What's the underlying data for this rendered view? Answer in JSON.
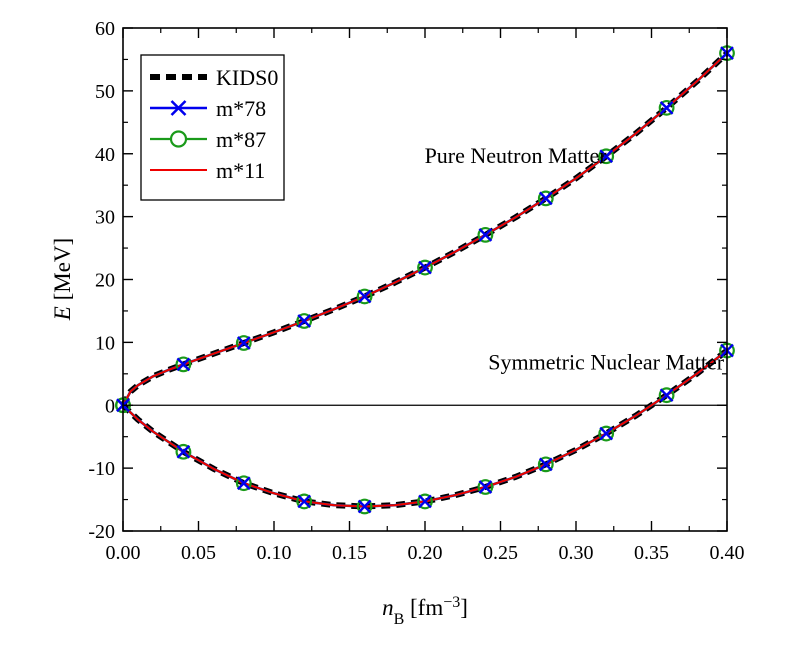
{
  "chart_data": {
    "type": "line",
    "xlabel": "n",
    "xlabel_sub": "B",
    "xlabel_unit_open": " [fm",
    "xlabel_unit_sup": "−3",
    "xlabel_unit_close": "]",
    "ylabel": "E",
    "ylabel_unit": " [MeV]",
    "xlim": [
      0.0,
      0.4
    ],
    "ylim": [
      -20,
      60
    ],
    "xticks": [
      0.0,
      0.05,
      0.1,
      0.15,
      0.2,
      0.25,
      0.3,
      0.35,
      0.4
    ],
    "xtick_labels": [
      "0.00",
      "0.05",
      "0.10",
      "0.15",
      "0.20",
      "0.25",
      "0.30",
      "0.35",
      "0.40"
    ],
    "yticks": [
      -20,
      -10,
      0,
      10,
      20,
      30,
      40,
      50,
      60
    ],
    "ytick_labels": [
      "-20",
      "-10",
      "0",
      "10",
      "20",
      "30",
      "40",
      "50",
      "60"
    ],
    "grid": false,
    "legend_position": "top-left",
    "annotations": [
      {
        "text": "Pure Neutron Matter",
        "x": 0.26,
        "y": 38.5
      },
      {
        "text": "Symmetric Nuclear Matter",
        "x": 0.32,
        "y": 5.7
      }
    ],
    "reference_line_y": 0,
    "curves": {
      "pnm": {
        "x": [
          0.0,
          0.005,
          0.01,
          0.02,
          0.03,
          0.04,
          0.06,
          0.08,
          0.1,
          0.12,
          0.14,
          0.16,
          0.18,
          0.2,
          0.22,
          0.24,
          0.26,
          0.28,
          0.3,
          0.32,
          0.34,
          0.36,
          0.38,
          0.4
        ],
        "y": [
          0.0,
          2.2,
          3.2,
          4.6,
          5.6,
          6.5,
          8.2,
          9.9,
          11.6,
          13.4,
          15.3,
          17.3,
          19.5,
          21.9,
          24.4,
          27.1,
          29.9,
          32.9,
          36.1,
          39.6,
          43.3,
          47.3,
          51.5,
          56.0
        ]
      },
      "snm": {
        "x": [
          0.0,
          0.01,
          0.02,
          0.04,
          0.06,
          0.08,
          0.1,
          0.12,
          0.14,
          0.16,
          0.18,
          0.2,
          0.22,
          0.24,
          0.26,
          0.28,
          0.3,
          0.32,
          0.34,
          0.36,
          0.38,
          0.4
        ],
        "y": [
          0.0,
          -2.3,
          -4.2,
          -7.4,
          -10.1,
          -12.4,
          -14.0,
          -15.3,
          -15.9,
          -16.1,
          -15.9,
          -15.3,
          -14.3,
          -13.0,
          -11.4,
          -9.4,
          -7.1,
          -4.5,
          -1.6,
          1.6,
          5.0,
          8.7
        ]
      }
    },
    "marker_points": {
      "pnm": {
        "x": [
          0.0,
          0.04,
          0.08,
          0.12,
          0.16,
          0.2,
          0.24,
          0.28,
          0.32,
          0.36,
          0.4
        ],
        "y": [
          0.0,
          6.5,
          9.9,
          13.4,
          17.3,
          21.9,
          27.1,
          32.9,
          39.6,
          47.3,
          56.0
        ]
      },
      "snm": {
        "x": [
          0.0,
          0.04,
          0.08,
          0.12,
          0.16,
          0.2,
          0.24,
          0.28,
          0.32,
          0.36,
          0.4
        ],
        "y": [
          0.0,
          -7.4,
          -12.4,
          -15.3,
          -16.1,
          -15.3,
          -13.0,
          -9.4,
          -4.5,
          1.6,
          8.7
        ]
      }
    },
    "series": [
      {
        "name": "KIDS0",
        "color": "#000000",
        "style": "dashed",
        "marker": "none"
      },
      {
        "name": "m*78",
        "color": "#0000ee",
        "style": "solid",
        "marker": "x"
      },
      {
        "name": "m*87",
        "color": "#1a9a1a",
        "style": "solid",
        "marker": "circle"
      },
      {
        "name": "m*11",
        "color": "#ee0000",
        "style": "solid",
        "marker": "none"
      }
    ]
  }
}
